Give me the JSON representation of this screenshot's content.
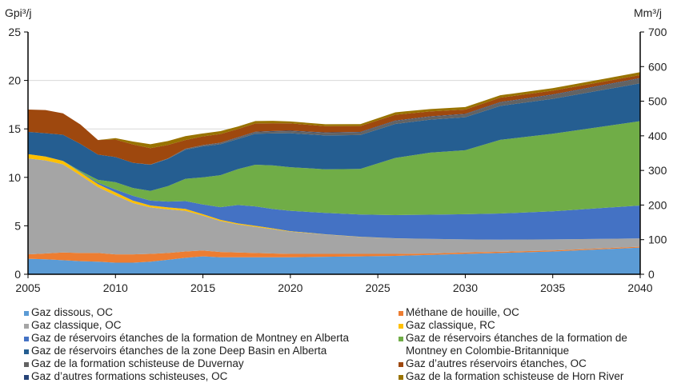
{
  "chart_data": {
    "type": "area",
    "stacked": true,
    "ylabel_left": "Gpi³/j",
    "ylabel_right": "Mm³/j",
    "ylim_left": [
      0,
      25
    ],
    "ylim_right": [
      0,
      700
    ],
    "yticks_left": [
      "0",
      "5",
      "10",
      "15",
      "20",
      "25"
    ],
    "yticks_right": [
      "0",
      "100",
      "200",
      "300",
      "400",
      "500",
      "600",
      "700"
    ],
    "xlim": [
      2005,
      2040
    ],
    "xticks": [
      "2005",
      "2010",
      "2015",
      "2020",
      "2025",
      "2030",
      "2035",
      "2040"
    ],
    "grid": true,
    "legend_placement": "bottom",
    "x": [
      2005,
      2006,
      2007,
      2008,
      2009,
      2010,
      2011,
      2012,
      2013,
      2014,
      2015,
      2016,
      2017,
      2018,
      2019,
      2020,
      2022,
      2024,
      2026,
      2028,
      2030,
      2032,
      2035,
      2040
    ],
    "series": [
      {
        "name": "Gaz dissous, OC",
        "color": "#5B9BD5",
        "values": [
          1.6,
          1.55,
          1.45,
          1.35,
          1.3,
          1.2,
          1.2,
          1.3,
          1.5,
          1.7,
          1.85,
          1.75,
          1.75,
          1.75,
          1.75,
          1.75,
          1.8,
          1.85,
          1.9,
          2.0,
          2.1,
          2.2,
          2.35,
          2.75
        ]
      },
      {
        "name": "Méthane de houille, OC",
        "color": "#ED7D31",
        "values": [
          0.45,
          0.6,
          0.8,
          0.85,
          0.9,
          0.85,
          0.85,
          0.8,
          0.7,
          0.65,
          0.6,
          0.55,
          0.5,
          0.45,
          0.4,
          0.35,
          0.3,
          0.25,
          0.2,
          0.15,
          0.15,
          0.12,
          0.1,
          0.1
        ]
      },
      {
        "name": "Gaz classique, OC",
        "color": "#A5A5A5",
        "values": [
          9.9,
          9.6,
          9.1,
          8.0,
          6.8,
          6.1,
          5.3,
          4.8,
          4.5,
          4.2,
          3.6,
          3.2,
          2.9,
          2.7,
          2.5,
          2.3,
          2.0,
          1.75,
          1.6,
          1.5,
          1.35,
          1.25,
          1.15,
          0.85
        ]
      },
      {
        "name": "Gaz classique, RC",
        "color": "#FFC000",
        "values": [
          0.45,
          0.4,
          0.35,
          0.3,
          0.3,
          0.3,
          0.25,
          0.2,
          0.2,
          0.2,
          0.15,
          0.12,
          0.1,
          0.1,
          0.08,
          0.05,
          0.03,
          0.02,
          0.01,
          0,
          0,
          0,
          0,
          0
        ]
      },
      {
        "name": "Gaz de réservoirs étanches de la formation de Montney en Alberta",
        "color": "#4472C4",
        "values": [
          0,
          0,
          0,
          0.05,
          0.15,
          0.3,
          0.5,
          0.5,
          0.6,
          0.8,
          1.0,
          1.3,
          1.9,
          2.0,
          2.0,
          2.1,
          2.2,
          2.3,
          2.4,
          2.5,
          2.6,
          2.7,
          2.9,
          3.4
        ]
      },
      {
        "name": "Gaz de réservoirs étanches de la formation de Montney en Colombie-Britannique",
        "color": "#70AD47",
        "values": [
          0,
          0,
          0,
          0.1,
          0.3,
          0.75,
          0.8,
          1.0,
          1.6,
          2.3,
          2.8,
          3.3,
          3.7,
          4.3,
          4.5,
          4.5,
          4.5,
          4.7,
          5.9,
          6.4,
          6.6,
          7.6,
          8.0,
          8.7
        ]
      },
      {
        "name": "Gaz de réservoirs étanches de la zone Deep Basin en Alberta",
        "color": "#255E91",
        "values": [
          2.3,
          2.4,
          2.7,
          2.8,
          2.6,
          2.6,
          2.6,
          2.7,
          2.8,
          3.0,
          3.2,
          3.2,
          3.1,
          3.2,
          3.3,
          3.5,
          3.5,
          3.5,
          3.5,
          3.4,
          3.4,
          3.5,
          3.6,
          3.9
        ]
      },
      {
        "name": "Gaz de la formation schisteuse de Duvernay",
        "color": "#636363",
        "values": [
          0,
          0,
          0,
          0,
          0,
          0,
          0,
          0.02,
          0.05,
          0.08,
          0.1,
          0.12,
          0.15,
          0.17,
          0.2,
          0.22,
          0.25,
          0.27,
          0.3,
          0.3,
          0.3,
          0.35,
          0.4,
          0.5
        ]
      },
      {
        "name": "Gaz d'autres formations schisteuses, OC",
        "color": "#264478",
        "values": [
          0,
          0,
          0,
          0,
          0,
          0,
          0,
          0,
          0,
          0.02,
          0.03,
          0.03,
          0.04,
          0.04,
          0.05,
          0.05,
          0.05,
          0.05,
          0.05,
          0.05,
          0.05,
          0.05,
          0.05,
          0.05
        ]
      },
      {
        "name": "Gaz d'autres réservoirs étanches, OC",
        "color": "#9E480E",
        "values": [
          2.3,
          2.4,
          2.2,
          2.0,
          1.5,
          1.8,
          1.9,
          1.7,
          1.4,
          0.9,
          0.9,
          0.9,
          0.85,
          0.85,
          0.8,
          0.75,
          0.65,
          0.6,
          0.6,
          0.5,
          0.45,
          0.45,
          0.4,
          0.3
        ]
      },
      {
        "name": "Gaz de la formation schisteuse de Horn River",
        "color": "#997300",
        "values": [
          0,
          0,
          0,
          0,
          0,
          0.15,
          0.3,
          0.4,
          0.4,
          0.4,
          0.3,
          0.3,
          0.25,
          0.25,
          0.25,
          0.2,
          0.2,
          0.2,
          0.25,
          0.25,
          0.25,
          0.25,
          0.25,
          0.3
        ]
      }
    ]
  },
  "legend": {
    "left": [
      {
        "label": "Gaz dissous, OC",
        "color": "#5B9BD5"
      },
      {
        "label": "Gaz classique, OC",
        "color": "#A5A5A5"
      },
      {
        "label": "Gaz de réservoirs étanches de la formation de Montney en Alberta",
        "color": "#4472C4"
      },
      {
        "label": "Gaz de réservoirs étanches de la zone Deep Basin en Alberta",
        "color": "#255E91"
      },
      {
        "label": "Gaz de la formation schisteuse de Duvernay",
        "color": "#636363"
      },
      {
        "label": "Gaz d’autres formations schisteuses, OC",
        "color": "#264478"
      }
    ],
    "right": [
      {
        "label": "Méthane de houille, OC",
        "color": "#ED7D31"
      },
      {
        "label": "Gaz classique, RC",
        "color": "#FFC000"
      },
      {
        "label": "Gaz de réservoirs étanches de la formation de Montney en Colombie-Britannique",
        "color": "#70AD47"
      },
      {
        "label": "Gaz d’autres réservoirs étanches, OC",
        "color": "#9E480E"
      },
      {
        "label": "Gaz de la formation schisteuse de Horn River",
        "color": "#997300"
      }
    ]
  }
}
